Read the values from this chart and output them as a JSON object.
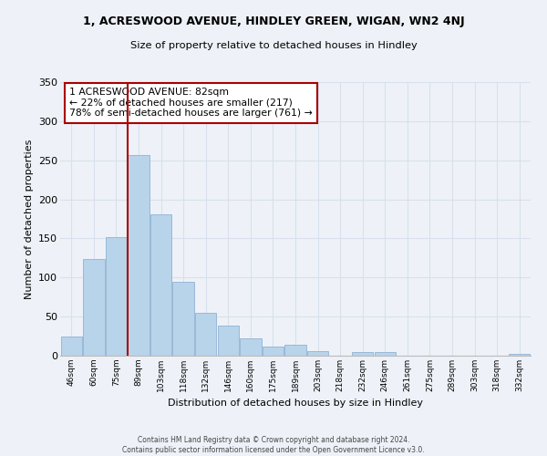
{
  "title": "1, ACRESWOOD AVENUE, HINDLEY GREEN, WIGAN, WN2 4NJ",
  "subtitle": "Size of property relative to detached houses in Hindley",
  "xlabel": "Distribution of detached houses by size in Hindley",
  "ylabel": "Number of detached properties",
  "bar_labels": [
    "46sqm",
    "60sqm",
    "75sqm",
    "89sqm",
    "103sqm",
    "118sqm",
    "132sqm",
    "146sqm",
    "160sqm",
    "175sqm",
    "189sqm",
    "203sqm",
    "218sqm",
    "232sqm",
    "246sqm",
    "261sqm",
    "275sqm",
    "289sqm",
    "303sqm",
    "318sqm",
    "332sqm"
  ],
  "bar_values": [
    25,
    124,
    152,
    257,
    181,
    95,
    55,
    39,
    22,
    12,
    14,
    6,
    0,
    5,
    5,
    0,
    0,
    0,
    0,
    0,
    2
  ],
  "bar_color": "#b8d4ea",
  "bar_edge_color": "#9ab8d8",
  "vline_color": "#aa0000",
  "annotation_title": "1 ACRESWOOD AVENUE: 82sqm",
  "annotation_line1": "← 22% of detached houses are smaller (217)",
  "annotation_line2": "78% of semi-detached houses are larger (761) →",
  "annotation_box_color": "#ffffff",
  "annotation_box_edge": "#aa0000",
  "footer_line1": "Contains HM Land Registry data © Crown copyright and database right 2024.",
  "footer_line2": "Contains public sector information licensed under the Open Government Licence v3.0.",
  "ylim": [
    0,
    350
  ],
  "yticks": [
    0,
    50,
    100,
    150,
    200,
    250,
    300,
    350
  ],
  "background_color": "#eef2f8",
  "grid_color": "#d8e0ec"
}
